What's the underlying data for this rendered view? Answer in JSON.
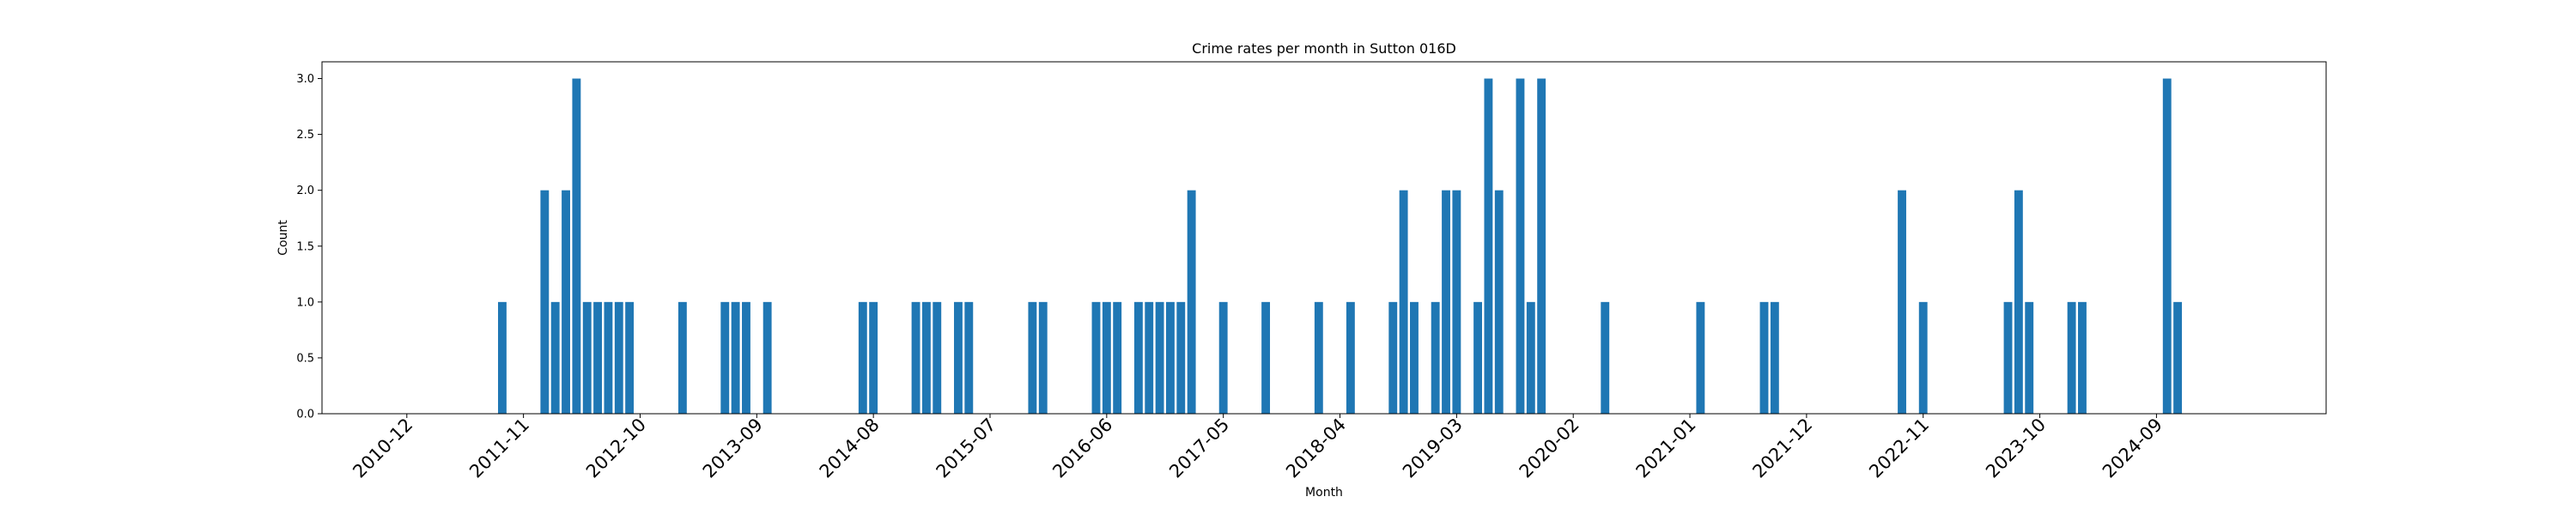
{
  "chart_data": {
    "type": "bar",
    "title": "Crime rates per month in Sutton 016D",
    "xlabel": "Month",
    "ylabel": "Count",
    "ylim": [
      0,
      3.15
    ],
    "yticks": [
      "0.0",
      "0.5",
      "1.0",
      "1.5",
      "2.0",
      "2.5",
      "3.0"
    ],
    "xlim": [
      "2010-04",
      "2026-01"
    ],
    "xticks": [
      "2010-12",
      "2011-11",
      "2012-10",
      "2013-09",
      "2014-08",
      "2015-07",
      "2016-06",
      "2017-05",
      "2018-04",
      "2019-03",
      "2020-02",
      "2021-01",
      "2021-12",
      "2022-11",
      "2023-10",
      "2024-09"
    ],
    "grid": false,
    "bar_color": "#1f77b4",
    "categories": [
      "2011-09",
      "2012-01",
      "2012-02",
      "2012-03",
      "2012-04",
      "2012-05",
      "2012-06",
      "2012-07",
      "2012-08",
      "2012-09",
      "2013-02",
      "2013-06",
      "2013-07",
      "2013-08",
      "2013-10",
      "2014-07",
      "2014-08",
      "2014-12",
      "2015-01",
      "2015-02",
      "2015-04",
      "2015-05",
      "2015-11",
      "2015-12",
      "2016-05",
      "2016-06",
      "2016-07",
      "2016-09",
      "2016-10",
      "2016-11",
      "2016-12",
      "2017-01",
      "2017-02",
      "2017-05",
      "2017-09",
      "2018-02",
      "2018-05",
      "2018-09",
      "2018-10",
      "2018-11",
      "2019-01",
      "2019-02",
      "2019-03",
      "2019-05",
      "2019-06",
      "2019-07",
      "2019-09",
      "2019-10",
      "2019-11",
      "2020-05",
      "2021-02",
      "2021-08",
      "2021-09",
      "2022-09",
      "2022-11",
      "2023-07",
      "2023-08",
      "2023-09",
      "2024-01",
      "2024-02",
      "2024-10",
      "2024-11"
    ],
    "values": [
      1,
      2,
      1,
      2,
      3,
      1,
      1,
      1,
      1,
      1,
      1,
      1,
      1,
      1,
      1,
      1,
      1,
      1,
      1,
      1,
      1,
      1,
      1,
      1,
      1,
      1,
      1,
      1,
      1,
      1,
      1,
      1,
      2,
      1,
      1,
      1,
      1,
      1,
      2,
      1,
      1,
      2,
      2,
      1,
      3,
      2,
      3,
      1,
      3,
      1,
      1,
      1,
      1,
      2,
      1,
      1,
      2,
      1,
      1,
      1,
      3,
      1
    ]
  }
}
